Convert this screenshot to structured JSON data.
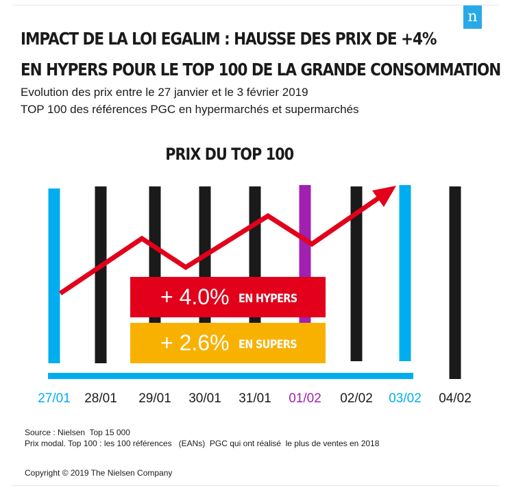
{
  "header": {
    "title_line1": "IMPACT DE LA LOI EGALIM : HAUSSE DES PRIX DE +4%",
    "title_line2": "EN HYPERS POUR LE TOP 100 DE LA GRANDE CONSOMMATION",
    "subtitle_line1": "Evolution des prix entre le 27 janvier et le 3 février 2019",
    "subtitle_line2": "TOP 100 des références PGC en hypermarchés et supermarchés",
    "logo": "n"
  },
  "chart_data": {
    "type": "line",
    "title": "PRIX DU TOP 100",
    "categories": [
      "27/01",
      "28/01",
      "29/01",
      "30/01",
      "31/01",
      "01/02",
      "02/02",
      "03/02",
      "04/02"
    ],
    "category_colors": [
      "#00aeef",
      "#1a1a1a",
      "#1a1a1a",
      "#1a1a1a",
      "#1a1a1a",
      "#a020b0",
      "#1a1a1a",
      "#00aeef",
      "#1a1a1a"
    ],
    "trend": {
      "color": "#e2001a",
      "direction": "up"
    },
    "annotations": [
      {
        "value": "+ 4.0%",
        "label": "EN HYPERS",
        "color": "#e2001a"
      },
      {
        "value": "+ 2.6%",
        "label": "EN SUPERS",
        "color": "#f8b100"
      }
    ]
  },
  "footer": {
    "source_line1": "Source : Nielsen  Top 15 000",
    "source_line2": "Prix modal. Top 100 : les 100 références   (EANs)  PGC qui ont réalisé  le plus de ventes en 2018",
    "copyright": "Copyright © 2019 The Nielsen Company"
  }
}
